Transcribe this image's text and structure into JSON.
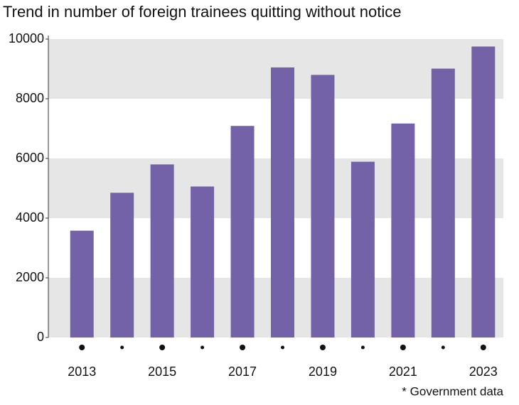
{
  "chart_data": {
    "type": "bar",
    "title": "Trend in number of foreign trainees quitting without notice",
    "note": "* Government data",
    "categories": [
      "2013",
      null,
      "2015",
      null,
      "2017",
      null,
      "2019",
      null,
      "2021",
      null,
      "2023"
    ],
    "values": [
      3580,
      4850,
      5800,
      5060,
      7090,
      9050,
      8800,
      5890,
      7170,
      9010,
      9750
    ],
    "color": "#7462a8",
    "ylim": [
      0,
      10000
    ],
    "yticks": [
      0,
      2000,
      4000,
      6000,
      8000,
      10000
    ],
    "grid": "bands"
  }
}
